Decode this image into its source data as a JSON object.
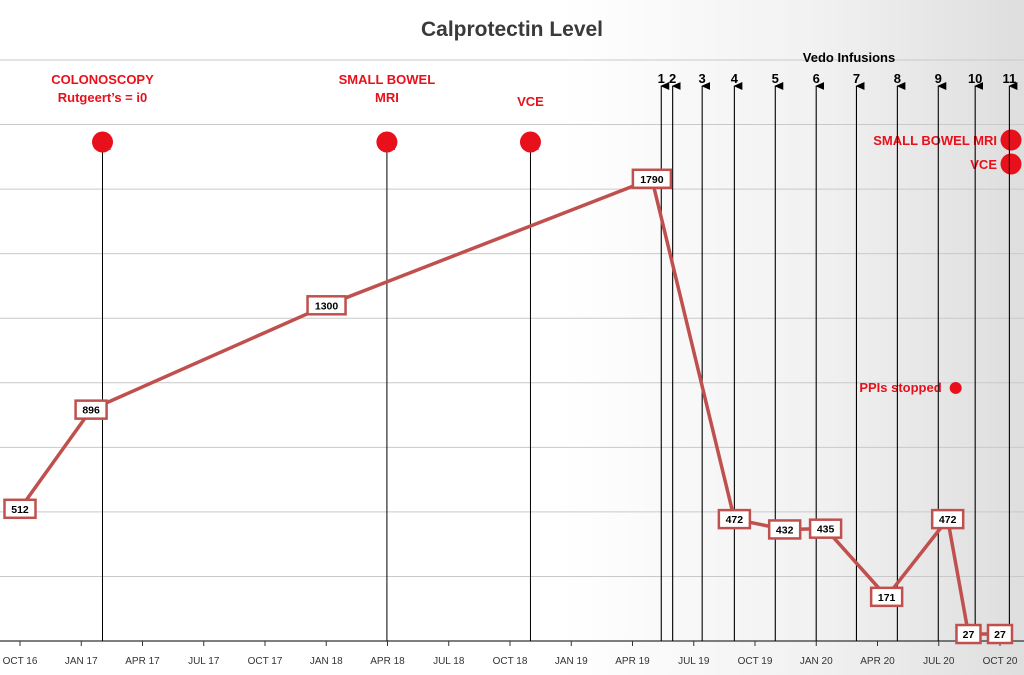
{
  "chart_data": {
    "type": "line",
    "title": "Calprotectin Level",
    "xlabel": "",
    "ylabel": "",
    "x_ticks": [
      "OCT 16",
      "JAN 17",
      "APR 17",
      "JUL 17",
      "OCT 17",
      "JAN 18",
      "APR 18",
      "JUL 18",
      "OCT 18",
      "JAN 19",
      "APR 19",
      "JUL 19",
      "OCT 19",
      "JAN 20",
      "APR 20",
      "JUL 20",
      "OCT 20"
    ],
    "ylim": [
      0,
      2250
    ],
    "grid": true,
    "series": [
      {
        "color": "#c0504d",
        "points": [
          {
            "x": "2016-10-01",
            "y": 512,
            "label": "512"
          },
          {
            "x": "2017-01-15",
            "y": 896,
            "label": "896"
          },
          {
            "x": "2018-01-01",
            "y": 1300,
            "label": "1300"
          },
          {
            "x": "2019-05-01",
            "y": 1790,
            "label": "1790"
          },
          {
            "x": "2019-09-01",
            "y": 472,
            "label": "472"
          },
          {
            "x": "2019-11-15",
            "y": 432,
            "label": "432"
          },
          {
            "x": "2020-01-15",
            "y": 435,
            "label": "435"
          },
          {
            "x": "2020-04-15",
            "y": 171,
            "label": "171"
          },
          {
            "x": "2020-07-15",
            "y": 472,
            "label": "472"
          },
          {
            "x": "2020-08-15",
            "y": 27,
            "label": "27"
          },
          {
            "x": "2020-10-01",
            "y": 27,
            "label": "27"
          }
        ]
      }
    ],
    "annotations": {
      "events": [
        {
          "x": "2017-02-01",
          "lines": [
            "COLONOSCOPY",
            "Rutgeert’s = i0"
          ],
          "color": "#e8101a"
        },
        {
          "x": "2018-04-01",
          "lines": [
            "SMALL BOWEL",
            "MRI"
          ],
          "color": "#e8101a"
        },
        {
          "x": "2018-11-01",
          "lines": [
            "VCE"
          ],
          "color": "#e8101a"
        }
      ],
      "infusions_title": "Vedo Infusions",
      "infusions": [
        {
          "n": "1",
          "x": "2019-05-15"
        },
        {
          "n": "2",
          "x": "2019-06-01"
        },
        {
          "n": "3",
          "x": "2019-07-15"
        },
        {
          "n": "4",
          "x": "2019-09-01"
        },
        {
          "n": "5",
          "x": "2019-11-01"
        },
        {
          "n": "6",
          "x": "2020-01-01"
        },
        {
          "n": "7",
          "x": "2020-03-01"
        },
        {
          "n": "8",
          "x": "2020-05-01"
        },
        {
          "n": "9",
          "x": "2020-07-01"
        },
        {
          "n": "10",
          "x": "2020-08-25"
        },
        {
          "n": "11",
          "x": "2020-10-15"
        }
      ],
      "right_events": [
        {
          "label": "SMALL BOWEL MRI",
          "x": "2020-10-15",
          "color": "#e8101a"
        },
        {
          "label": "VCE",
          "x": "2020-10-15",
          "color": "#e8101a"
        }
      ],
      "note": {
        "label": "PPIs stopped",
        "x": "2020-07-15",
        "y": 980,
        "color": "#e8101a"
      }
    }
  }
}
